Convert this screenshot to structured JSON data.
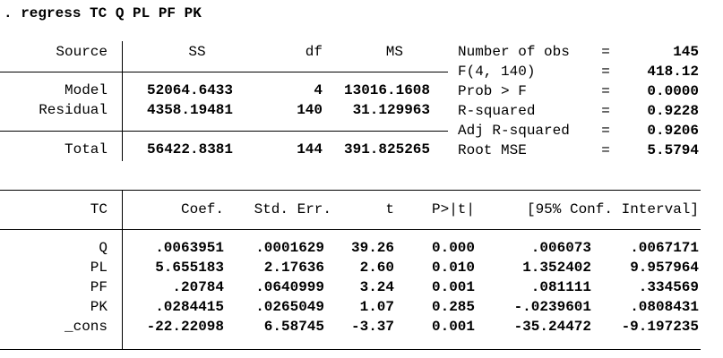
{
  "command": ". regress TC Q PL PF PK",
  "anova": {
    "headers": [
      "Source",
      "SS",
      "df",
      "MS"
    ],
    "rows": [
      [
        "Model",
        "52064.6433",
        "4",
        "13016.1608"
      ],
      [
        "Residual",
        "4358.19481",
        "140",
        "31.129963"
      ],
      [
        "Total",
        "56422.8381",
        "144",
        "391.825265"
      ]
    ]
  },
  "stats": [
    {
      "label": "Number of obs",
      "eq": "=",
      "value": "145"
    },
    {
      "label": "F(4, 140)",
      "eq": "=",
      "value": "418.12"
    },
    {
      "label": "Prob > F",
      "eq": "=",
      "value": "0.0000"
    },
    {
      "label": "R-squared",
      "eq": "=",
      "value": "0.9228"
    },
    {
      "label": "Adj R-squared",
      "eq": "=",
      "value": "0.9206"
    },
    {
      "label": "Root MSE",
      "eq": "=",
      "value": "5.5794"
    }
  ],
  "coef": {
    "headers": [
      "TC",
      "Coef.",
      "Std. Err.",
      "t",
      "P>|t|",
      "[95% Conf. Interval]"
    ],
    "rows": [
      [
        "Q",
        ".0063951",
        ".0001629",
        "39.26",
        "0.000",
        ".006073",
        ".0067171"
      ],
      [
        "PL",
        "5.655183",
        "2.17636",
        "2.60",
        "0.010",
        "1.352402",
        "9.957964"
      ],
      [
        "PF",
        ".20784",
        ".0640999",
        "3.24",
        "0.001",
        ".081111",
        ".334569"
      ],
      [
        "PK",
        ".0284415",
        ".0265049",
        "1.07",
        "0.285",
        "-.0239601",
        ".0808431"
      ],
      [
        "_cons",
        "-22.22098",
        "6.58745",
        "-3.37",
        "0.001",
        "-35.24472",
        "-9.197235"
      ]
    ]
  }
}
